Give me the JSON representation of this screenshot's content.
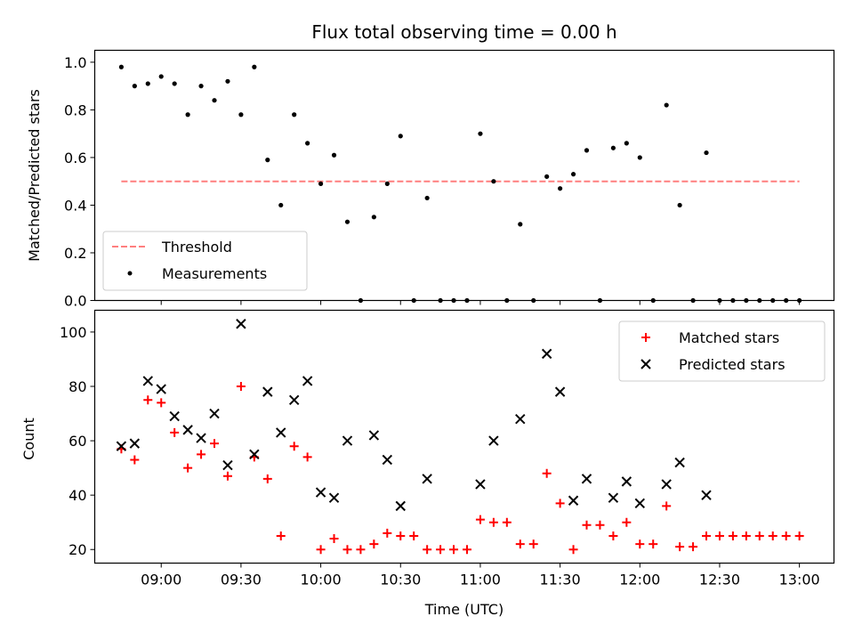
{
  "chart_data": [
    {
      "type": "scatter",
      "title": "Flux total observing time = 0.00 h",
      "xlabel": "",
      "ylabel": "Matched/Predicted stars",
      "ylim": [
        0,
        1.05
      ],
      "yticks": [
        "0.0",
        "0.2",
        "0.4",
        "0.6",
        "0.8",
        "1.0"
      ],
      "xlim": [
        "08:35",
        "13:13"
      ],
      "grid": false,
      "legend_position": "lower-left",
      "series": [
        {
          "name": "Threshold",
          "kind": "dashed-line",
          "color": "#ff7f7f",
          "points": [
            [
              "08:45",
              0.5
            ],
            [
              "13:00",
              0.5
            ]
          ]
        },
        {
          "name": "Measurements",
          "kind": "dots",
          "color": "#000000",
          "points": [
            [
              "08:45",
              0.98
            ],
            [
              "08:50",
              0.9
            ],
            [
              "08:55",
              0.91
            ],
            [
              "09:00",
              0.94
            ],
            [
              "09:05",
              0.91
            ],
            [
              "09:10",
              0.78
            ],
            [
              "09:15",
              0.9
            ],
            [
              "09:20",
              0.84
            ],
            [
              "09:25",
              0.92
            ],
            [
              "09:30",
              0.78
            ],
            [
              "09:35",
              0.98
            ],
            [
              "09:40",
              0.59
            ],
            [
              "09:45",
              0.4
            ],
            [
              "09:50",
              0.78
            ],
            [
              "09:55",
              0.66
            ],
            [
              "10:00",
              0.49
            ],
            [
              "10:05",
              0.61
            ],
            [
              "10:10",
              0.33
            ],
            [
              "10:15",
              0.0
            ],
            [
              "10:20",
              0.35
            ],
            [
              "10:25",
              0.49
            ],
            [
              "10:30",
              0.69
            ],
            [
              "10:35",
              0.0
            ],
            [
              "10:40",
              0.43
            ],
            [
              "10:45",
              0.0
            ],
            [
              "10:50",
              0.0
            ],
            [
              "10:55",
              0.0
            ],
            [
              "11:00",
              0.7
            ],
            [
              "11:05",
              0.5
            ],
            [
              "11:10",
              0.0
            ],
            [
              "11:15",
              0.32
            ],
            [
              "11:20",
              0.0
            ],
            [
              "11:25",
              0.52
            ],
            [
              "11:30",
              0.47
            ],
            [
              "11:35",
              0.53
            ],
            [
              "11:40",
              0.63
            ],
            [
              "11:45",
              0.0
            ],
            [
              "11:50",
              0.64
            ],
            [
              "11:55",
              0.66
            ],
            [
              "12:00",
              0.6
            ],
            [
              "12:05",
              0.0
            ],
            [
              "12:10",
              0.82
            ],
            [
              "12:15",
              0.4
            ],
            [
              "12:20",
              0.0
            ],
            [
              "12:25",
              0.62
            ],
            [
              "12:30",
              0.0
            ],
            [
              "12:35",
              0.0
            ],
            [
              "12:40",
              0.0
            ],
            [
              "12:45",
              0.0
            ],
            [
              "12:50",
              0.0
            ],
            [
              "12:55",
              0.0
            ],
            [
              "13:00",
              0.0
            ]
          ]
        }
      ]
    },
    {
      "type": "scatter",
      "title": "",
      "xlabel": "Time (UTC)",
      "ylabel": "Count",
      "ylim": [
        15,
        108
      ],
      "yticks": [
        "20",
        "40",
        "60",
        "80",
        "100"
      ],
      "xlim": [
        "08:35",
        "13:13"
      ],
      "xticks": [
        "09:00",
        "09:30",
        "10:00",
        "10:30",
        "11:00",
        "11:30",
        "12:00",
        "12:30",
        "13:00"
      ],
      "grid": false,
      "legend_position": "upper-right",
      "series": [
        {
          "name": "Matched stars",
          "kind": "plus",
          "color": "#ff0000",
          "points": [
            [
              "08:45",
              57
            ],
            [
              "08:50",
              53
            ],
            [
              "08:55",
              75
            ],
            [
              "09:00",
              74
            ],
            [
              "09:05",
              63
            ],
            [
              "09:10",
              50
            ],
            [
              "09:15",
              55
            ],
            [
              "09:20",
              59
            ],
            [
              "09:25",
              47
            ],
            [
              "09:30",
              80
            ],
            [
              "09:35",
              54
            ],
            [
              "09:40",
              46
            ],
            [
              "09:45",
              25
            ],
            [
              "09:50",
              58
            ],
            [
              "09:55",
              54
            ],
            [
              "10:00",
              20
            ],
            [
              "10:05",
              24
            ],
            [
              "10:10",
              20
            ],
            [
              "10:15",
              20
            ],
            [
              "10:20",
              22
            ],
            [
              "10:25",
              26
            ],
            [
              "10:30",
              25
            ],
            [
              "10:35",
              25
            ],
            [
              "10:40",
              20
            ],
            [
              "10:45",
              20
            ],
            [
              "10:50",
              20
            ],
            [
              "10:55",
              20
            ],
            [
              "11:00",
              31
            ],
            [
              "11:05",
              30
            ],
            [
              "11:10",
              30
            ],
            [
              "11:15",
              22
            ],
            [
              "11:20",
              22
            ],
            [
              "11:25",
              48
            ],
            [
              "11:30",
              37
            ],
            [
              "11:35",
              20
            ],
            [
              "11:40",
              29
            ],
            [
              "11:45",
              29
            ],
            [
              "11:50",
              25
            ],
            [
              "11:55",
              30
            ],
            [
              "12:00",
              22
            ],
            [
              "12:05",
              22
            ],
            [
              "12:10",
              36
            ],
            [
              "12:15",
              21
            ],
            [
              "12:20",
              21
            ],
            [
              "12:25",
              25
            ],
            [
              "12:30",
              25
            ],
            [
              "12:35",
              25
            ],
            [
              "12:40",
              25
            ],
            [
              "12:45",
              25
            ],
            [
              "12:50",
              25
            ],
            [
              "12:55",
              25
            ],
            [
              "13:00",
              25
            ]
          ]
        },
        {
          "name": "Predicted stars",
          "kind": "x",
          "color": "#000000",
          "points": [
            [
              "08:45",
              58
            ],
            [
              "08:50",
              59
            ],
            [
              "08:55",
              82
            ],
            [
              "09:00",
              79
            ],
            [
              "09:05",
              69
            ],
            [
              "09:10",
              64
            ],
            [
              "09:15",
              61
            ],
            [
              "09:20",
              70
            ],
            [
              "09:25",
              51
            ],
            [
              "09:30",
              103
            ],
            [
              "09:35",
              55
            ],
            [
              "09:40",
              78
            ],
            [
              "09:45",
              63
            ],
            [
              "09:50",
              75
            ],
            [
              "09:55",
              82
            ],
            [
              "10:00",
              41
            ],
            [
              "10:05",
              39
            ],
            [
              "10:10",
              60
            ],
            [
              "10:20",
              62
            ],
            [
              "10:25",
              53
            ],
            [
              "10:30",
              36
            ],
            [
              "10:40",
              46
            ],
            [
              "11:00",
              44
            ],
            [
              "11:05",
              60
            ],
            [
              "11:15",
              68
            ],
            [
              "11:25",
              92
            ],
            [
              "11:30",
              78
            ],
            [
              "11:35",
              38
            ],
            [
              "11:40",
              46
            ],
            [
              "11:50",
              39
            ],
            [
              "11:55",
              45
            ],
            [
              "12:00",
              37
            ],
            [
              "12:10",
              44
            ],
            [
              "12:15",
              52
            ],
            [
              "12:25",
              40
            ]
          ]
        }
      ]
    }
  ]
}
